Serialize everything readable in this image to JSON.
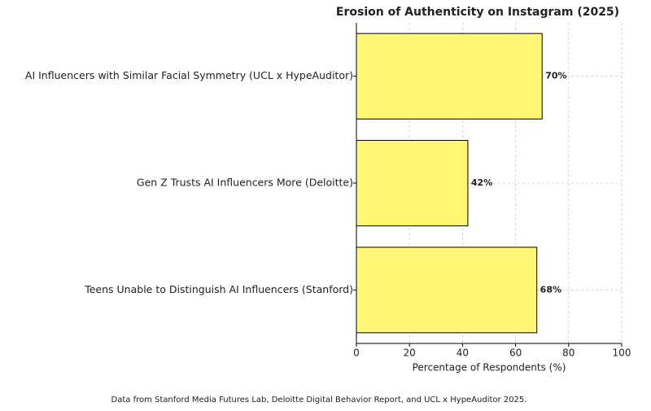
{
  "chart_data": {
    "type": "barh",
    "title": "Erosion of Authenticity on Instagram (2025)",
    "categories": [
      "AI Influencers with Similar Facial Symmetry (UCL x HypeAuditor)",
      "Gen Z Trusts AI Influencers More (Deloitte)",
      "Teens Unable to Distinguish AI Influencers (Stanford)"
    ],
    "values": [
      70,
      42,
      68
    ],
    "value_labels": [
      "70%",
      "42%",
      "68%"
    ],
    "color": "#fff675",
    "xlabel": "Percentage of Respondents (%)",
    "xlim": [
      0,
      100
    ],
    "xticks": [
      0,
      20,
      40,
      60,
      80,
      100
    ],
    "grid": true,
    "footnote": "Data from Stanford Media Futures Lab, Deloitte Digital Behavior Report, and UCL x HypeAuditor 2025."
  }
}
